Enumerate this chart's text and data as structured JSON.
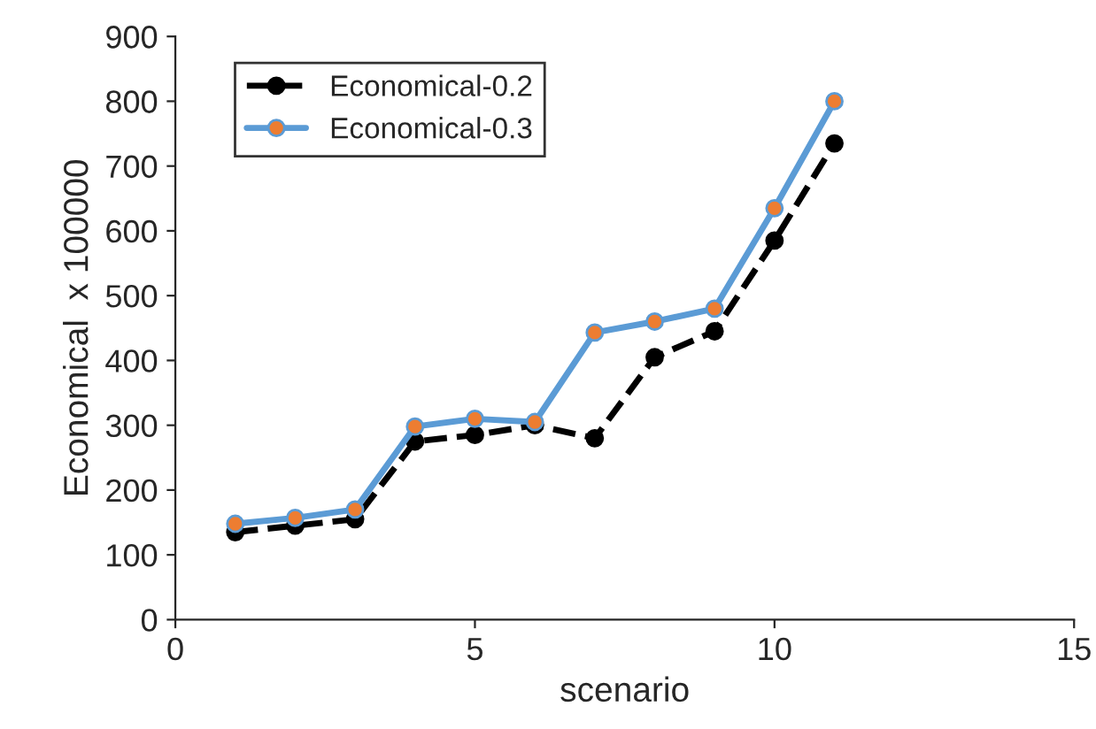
{
  "chart_data": {
    "type": "line",
    "xlabel": "scenario",
    "ylabel": "Economical  x 100000",
    "x": [
      1,
      2,
      3,
      4,
      5,
      6,
      7,
      8,
      9,
      10,
      11
    ],
    "series": [
      {
        "name": "Economical-0.2",
        "color": "#000000",
        "line_style": "dashed",
        "marker": "circle",
        "values": [
          135,
          145,
          155,
          275,
          285,
          300,
          280,
          405,
          445,
          585,
          735
        ]
      },
      {
        "name": "Economical-0.3",
        "color": "#5b9bd5",
        "line_style": "solid",
        "marker": "circle",
        "values": [
          148,
          157,
          170,
          298,
          310,
          305,
          443,
          460,
          480,
          635,
          800
        ]
      }
    ],
    "xlim": [
      0,
      15
    ],
    "xticks": [
      0,
      5,
      10,
      15
    ],
    "ylim": [
      0,
      900
    ],
    "yticks": [
      0,
      100,
      200,
      300,
      400,
      500,
      600,
      700,
      800,
      900
    ],
    "grid": false,
    "legend": "top left"
  }
}
